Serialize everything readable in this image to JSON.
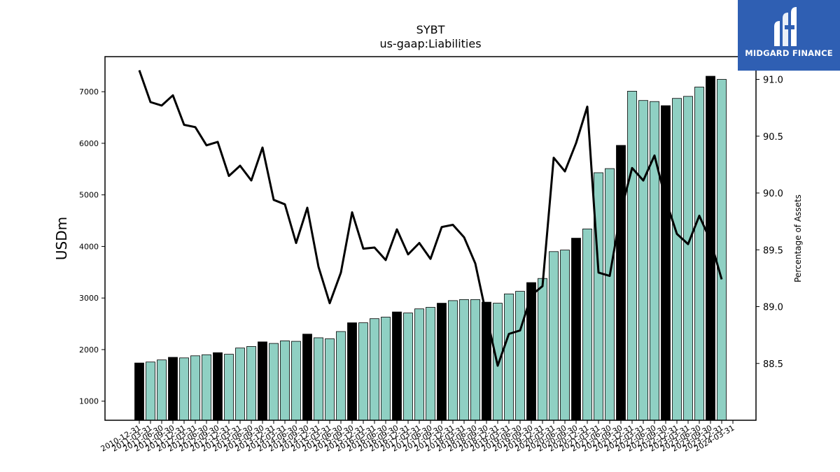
{
  "brand": {
    "name": "MIDGARD FINANCE"
  },
  "chart_data": {
    "type": "bar",
    "title": "SYBT",
    "subtitle": "us-gaap:Liabilities",
    "ylabel": "USDm",
    "y2label": "Percentage of Assets",
    "ylim": [
      630,
      7680
    ],
    "y2lim": [
      88.0,
      91.2
    ],
    "yticks": [
      1000,
      2000,
      3000,
      4000,
      5000,
      6000,
      7000
    ],
    "y2ticks": [
      88.5,
      89.0,
      89.5,
      90.0,
      90.5,
      91.0
    ],
    "y2tick_labels": [
      "88.5",
      "89.0",
      "89.5",
      "90.0",
      "90.5",
      "91.0"
    ],
    "colors": {
      "bar": "#8fd0c3",
      "bar_highlight": "#000000",
      "line": "#000000"
    },
    "categories": [
      "2010-12-31",
      "2011-03-31",
      "2011-06-30",
      "2011-09-30",
      "2011-12-31",
      "2012-03-31",
      "2012-06-30",
      "2012-09-30",
      "2012-12-31",
      "2013-03-31",
      "2013-06-30",
      "2013-09-30",
      "2013-12-31",
      "2014-03-31",
      "2014-06-30",
      "2014-09-30",
      "2014-12-31",
      "2015-03-31",
      "2015-06-30",
      "2015-09-30",
      "2015-12-31",
      "2016-03-31",
      "2016-06-30",
      "2016-09-30",
      "2016-12-31",
      "2017-03-31",
      "2017-06-30",
      "2017-09-30",
      "2017-12-31",
      "2018-03-31",
      "2018-06-30",
      "2018-09-30",
      "2018-12-31",
      "2019-03-31",
      "2019-06-30",
      "2019-09-30",
      "2019-12-31",
      "2020-03-31",
      "2020-06-30",
      "2020-09-30",
      "2020-12-31",
      "2021-03-31",
      "2021-06-30",
      "2021-09-30",
      "2021-12-31",
      "2022-03-31",
      "2022-06-30",
      "2022-09-30",
      "2022-12-31",
      "2023-03-31",
      "2023-06-30",
      "2023-09-30",
      "2023-12-31",
      "2024-03-31"
    ],
    "series": [
      {
        "type": "bar",
        "axis": "left",
        "values": [
          1740,
          1760,
          1800,
          1850,
          1840,
          1880,
          1900,
          1940,
          1910,
          2030,
          2060,
          2150,
          2120,
          2170,
          2160,
          2300,
          2230,
          2210,
          2350,
          2520,
          2520,
          2600,
          2630,
          2730,
          2710,
          2790,
          2820,
          2900,
          2950,
          2970,
          2970,
          2920,
          2900,
          3080,
          3130,
          3300,
          3380,
          3900,
          3930,
          4160,
          4340,
          5430,
          5510,
          5960,
          7010,
          6830,
          6810,
          6730,
          6870,
          6910,
          7090,
          7300,
          7240,
          null
        ],
        "highlight": [
          true,
          false,
          false,
          true,
          false,
          false,
          false,
          true,
          false,
          false,
          false,
          true,
          false,
          false,
          false,
          true,
          false,
          false,
          false,
          true,
          false,
          false,
          false,
          true,
          false,
          false,
          false,
          true,
          false,
          false,
          false,
          true,
          false,
          false,
          false,
          true,
          false,
          false,
          false,
          true,
          false,
          false,
          false,
          true,
          false,
          false,
          false,
          true,
          false,
          false,
          false,
          true,
          false,
          false
        ]
      },
      {
        "type": "line",
        "axis": "right",
        "values": [
          91.08,
          90.8,
          90.77,
          90.86,
          90.6,
          90.58,
          90.42,
          90.45,
          90.15,
          90.24,
          90.11,
          90.4,
          89.94,
          89.9,
          89.56,
          89.87,
          89.35,
          89.03,
          89.3,
          89.83,
          89.51,
          89.52,
          89.41,
          89.68,
          89.46,
          89.56,
          89.42,
          89.7,
          89.72,
          89.61,
          89.38,
          88.92,
          88.48,
          88.76,
          88.79,
          89.1,
          89.18,
          90.31,
          90.19,
          90.44,
          90.76,
          89.3,
          89.27,
          89.84,
          90.22,
          90.11,
          90.33,
          89.94,
          89.64,
          89.55,
          89.8,
          89.58,
          89.24,
          null
        ]
      }
    ]
  }
}
